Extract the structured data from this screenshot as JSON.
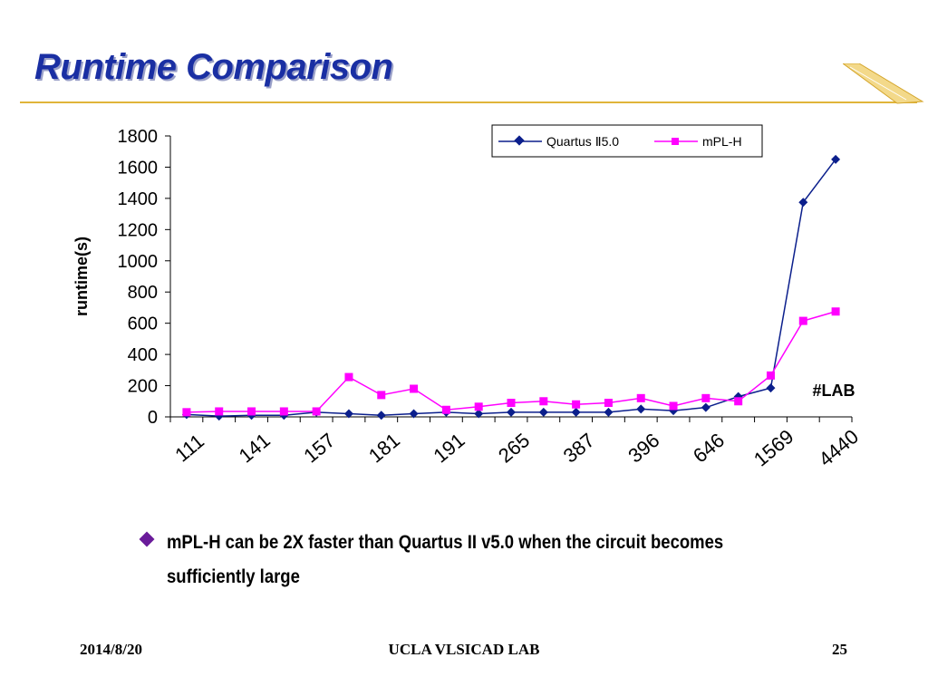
{
  "slide": {
    "title": "Runtime Comparison",
    "bullet": "mPL-H can be 2X faster than Quartus II v5.0 when the circuit becomes sufficiently large",
    "footer_date": "2014/8/20",
    "footer_lab": "UCLA VLSICAD LAB",
    "page_number": "25",
    "colors": {
      "title": "#1a2fa3",
      "rule": "#e0b43a",
      "bullet": "#6a1b9a"
    }
  },
  "chart_data": {
    "type": "line",
    "title": "",
    "xlabel": "#LAB",
    "ylabel": "runtime(s)",
    "ylim": [
      0,
      1800
    ],
    "yticks": [
      0,
      200,
      400,
      600,
      800,
      1000,
      1200,
      1400,
      1600,
      1800
    ],
    "x_tick_labels": [
      "111",
      "141",
      "157",
      "181",
      "191",
      "265",
      "387",
      "396",
      "646",
      "1569",
      "4440"
    ],
    "point_count": 21,
    "grid": false,
    "legend": "top-right",
    "series": [
      {
        "name": "Quartus Ⅱ5.0",
        "color": "#0b1f8c",
        "marker": "diamond",
        "values": [
          15,
          5,
          10,
          10,
          30,
          20,
          10,
          20,
          30,
          20,
          30,
          30,
          30,
          30,
          50,
          40,
          60,
          130,
          185,
          1375,
          1650
        ]
      },
      {
        "name": "mPL-H",
        "color": "#ff00ff",
        "marker": "square",
        "values": [
          30,
          35,
          35,
          35,
          35,
          255,
          140,
          180,
          45,
          65,
          90,
          100,
          80,
          90,
          120,
          70,
          120,
          100,
          265,
          615,
          675
        ]
      }
    ]
  }
}
